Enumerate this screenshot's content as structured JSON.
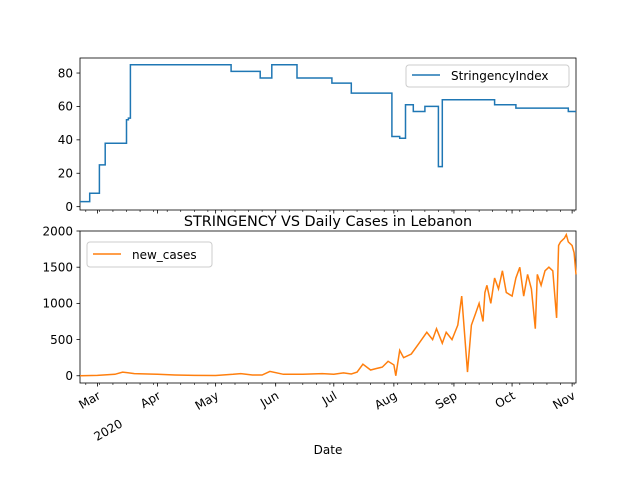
{
  "chart_data": [
    {
      "type": "line",
      "title": "",
      "xlabel": "",
      "ylabel": "",
      "ylim": [
        -2,
        89
      ],
      "yticks": [
        0,
        20,
        40,
        60,
        80
      ],
      "legend": {
        "position": "top-right",
        "entries": [
          "StringencyIndex"
        ]
      },
      "grid": false,
      "series": [
        {
          "name": "StringencyIndex",
          "color": "#1f77b4",
          "step": true,
          "x": [
            "2020-02-21",
            "2020-02-26",
            "2020-03-02",
            "2020-03-05",
            "2020-03-10",
            "2020-03-16",
            "2020-03-17",
            "2020-03-18",
            "2020-05-04",
            "2020-05-09",
            "2020-05-24",
            "2020-05-30",
            "2020-06-12",
            "2020-06-30",
            "2020-07-10",
            "2020-07-30",
            "2020-07-31",
            "2020-08-01",
            "2020-08-04",
            "2020-08-07",
            "2020-08-11",
            "2020-08-17",
            "2020-08-24",
            "2020-08-26",
            "2020-09-15",
            "2020-09-22",
            "2020-10-03",
            "2020-10-30"
          ],
          "y": [
            3,
            8,
            25,
            38,
            38,
            52,
            53,
            85,
            85,
            81,
            77,
            85,
            77,
            74,
            68,
            68,
            42,
            42,
            41,
            61,
            57,
            60,
            24,
            64,
            64,
            61,
            59,
            57
          ]
        }
      ]
    },
    {
      "type": "line",
      "title": "STRINGENCY VS Daily Cases in Lebanon",
      "xlabel": "Date",
      "ylabel": "",
      "ylim": [
        -100,
        2000
      ],
      "yticks": [
        0,
        500,
        1000,
        1500,
        2000
      ],
      "legend": {
        "position": "top-left",
        "entries": [
          "new_cases"
        ]
      },
      "grid": false,
      "series": [
        {
          "name": "new_cases",
          "color": "#ff7f0e",
          "x": [
            "2020-02-21",
            "2020-03-01",
            "2020-03-10",
            "2020-03-14",
            "2020-03-20",
            "2020-03-27",
            "2020-04-01",
            "2020-04-10",
            "2020-04-20",
            "2020-05-01",
            "2020-05-10",
            "2020-05-14",
            "2020-05-20",
            "2020-05-25",
            "2020-05-29",
            "2020-06-05",
            "2020-06-15",
            "2020-06-25",
            "2020-07-01",
            "2020-07-06",
            "2020-07-10",
            "2020-07-13",
            "2020-07-16",
            "2020-07-20",
            "2020-07-23",
            "2020-07-26",
            "2020-07-29",
            "2020-08-01",
            "2020-08-02",
            "2020-08-04",
            "2020-08-06",
            "2020-08-10",
            "2020-08-14",
            "2020-08-18",
            "2020-08-21",
            "2020-08-23",
            "2020-08-26",
            "2020-08-28",
            "2020-08-31",
            "2020-09-03",
            "2020-09-05",
            "2020-09-08",
            "2020-09-10",
            "2020-09-12",
            "2020-09-14",
            "2020-09-16",
            "2020-09-17",
            "2020-09-18",
            "2020-09-20",
            "2020-09-22",
            "2020-09-24",
            "2020-09-26",
            "2020-09-28",
            "2020-10-01",
            "2020-10-03",
            "2020-10-05",
            "2020-10-07",
            "2020-10-09",
            "2020-10-11",
            "2020-10-13",
            "2020-10-14",
            "2020-10-16",
            "2020-10-18",
            "2020-10-20",
            "2020-10-22",
            "2020-10-24",
            "2020-10-25",
            "2020-10-26",
            "2020-10-28",
            "2020-10-29",
            "2020-10-30",
            "2020-11-01",
            "2020-11-02",
            "2020-11-03"
          ],
          "y": [
            0,
            5,
            20,
            50,
            30,
            25,
            20,
            10,
            5,
            3,
            20,
            30,
            10,
            10,
            60,
            20,
            20,
            30,
            20,
            40,
            25,
            50,
            160,
            80,
            100,
            120,
            200,
            150,
            0,
            350,
            250,
            300,
            450,
            600,
            500,
            650,
            450,
            600,
            500,
            700,
            1100,
            50,
            700,
            850,
            1000,
            750,
            1150,
            1250,
            1000,
            1350,
            1200,
            1450,
            1150,
            1100,
            1350,
            1500,
            1100,
            1400,
            1200,
            650,
            1400,
            1250,
            1450,
            1500,
            1450,
            800,
            1800,
            1850,
            1900,
            1950,
            1850,
            1800,
            1700,
            1400
          ]
        }
      ],
      "x_major_ticks": [
        {
          "date": "2020-03-01",
          "label": "Mar",
          "sublabel": "2020"
        },
        {
          "date": "2020-04-01",
          "label": "Apr"
        },
        {
          "date": "2020-05-01",
          "label": "May"
        },
        {
          "date": "2020-06-01",
          "label": "Jun"
        },
        {
          "date": "2020-07-01",
          "label": "Jul"
        },
        {
          "date": "2020-08-01",
          "label": "Aug"
        },
        {
          "date": "2020-09-01",
          "label": "Sep"
        },
        {
          "date": "2020-10-01",
          "label": "Oct"
        },
        {
          "date": "2020-11-01",
          "label": "Nov"
        }
      ],
      "xlim": [
        "2020-02-21",
        "2020-11-03"
      ]
    }
  ]
}
